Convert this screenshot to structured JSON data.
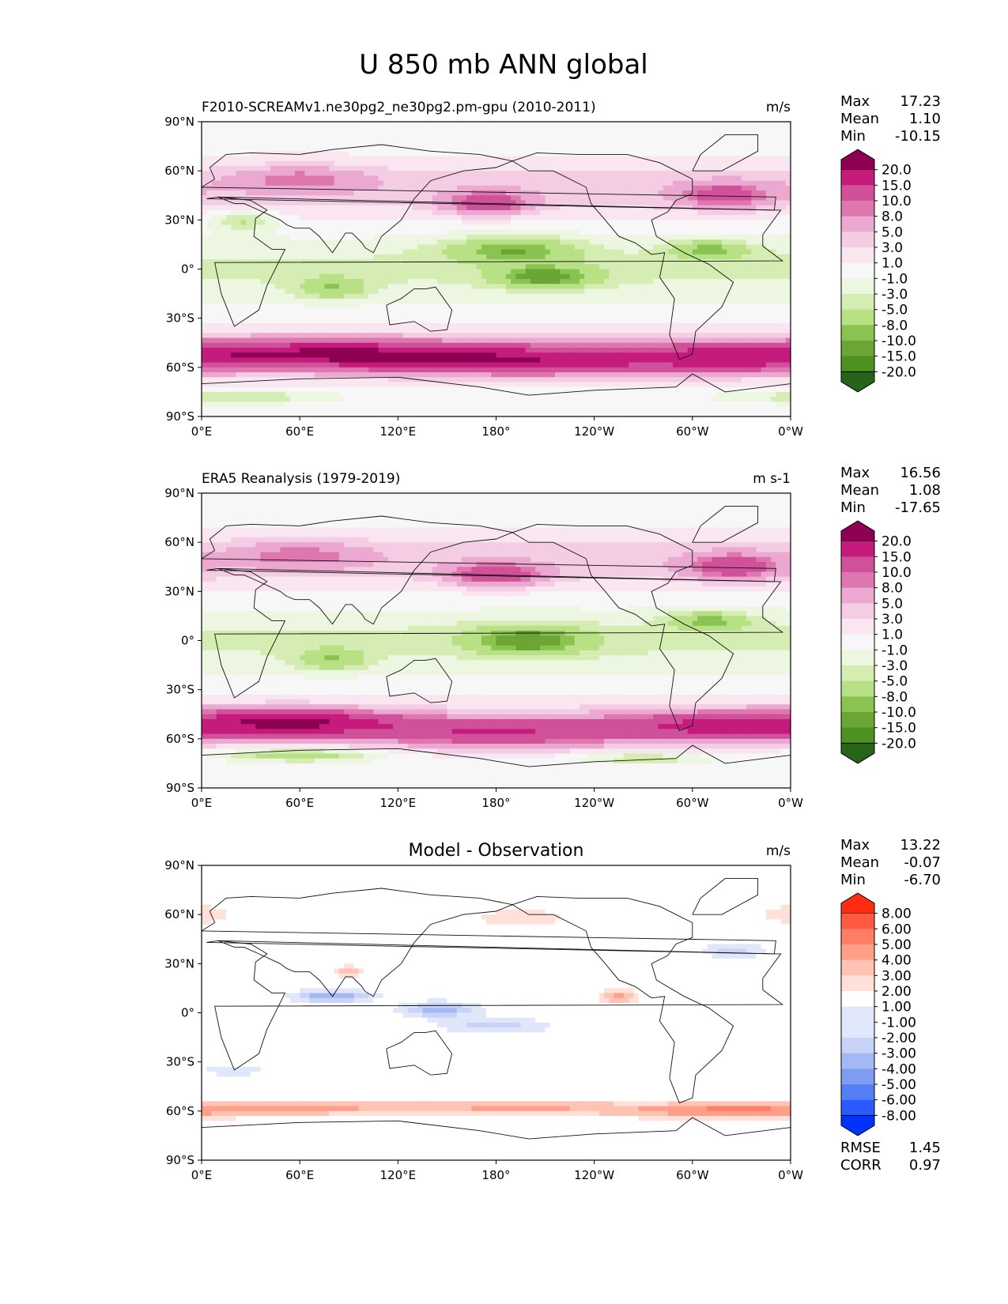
{
  "title": "U 850 mb ANN global",
  "lat_ticks": [
    "90°N",
    "60°N",
    "30°N",
    "0°",
    "30°S",
    "60°S",
    "90°S"
  ],
  "lon_ticks": [
    "0°E",
    "60°E",
    "120°E",
    "180°",
    "120°W",
    "60°W",
    "0°W"
  ],
  "stat_labels": {
    "max": "Max",
    "mean": "Mean",
    "min": "Min",
    "rmse": "RMSE",
    "corr": "CORR"
  },
  "field_colors": [
    "#276419",
    "#4d9221",
    "#6aa535",
    "#8ac351",
    "#b8e186",
    "#d5edb3",
    "#ecf6e0",
    "#f7f7f7",
    "#f9e6f1",
    "#f4cde4",
    "#eba9d1",
    "#de77ae",
    "#d0519a",
    "#c51b7d",
    "#8e0152"
  ],
  "diff_colors": [
    "#0033ff",
    "#2a5bff",
    "#5580f5",
    "#7e9df0",
    "#a4b8f3",
    "#c8d3f7",
    "#e1e7fb",
    "#ffffff",
    "#ffe1da",
    "#ffc3b4",
    "#ff9f8a",
    "#ff7e66",
    "#ff5a3f",
    "#ff2d12"
  ],
  "panels": [
    {
      "id": "model",
      "left_label": "F2010-SCREAMv1.ne30pg2_ne30pg2.pm-gpu (2010-2011)",
      "center_label": "",
      "units": "m/s",
      "stats": {
        "max": "17.23",
        "mean": "1.10",
        "min": "-10.15"
      },
      "colorbar": {
        "scheme": "field",
        "levels": [
          "20.0",
          "15.0",
          "10.0",
          "8.0",
          "5.0",
          "3.0",
          "1.0",
          "-1.0",
          "-3.0",
          "-5.0",
          "-8.0",
          "-10.0",
          "-15.0",
          "-20.0"
        ]
      },
      "field": {
        "type": "zonal_wind",
        "jets": [
          {
            "lon": 80,
            "lat": -52,
            "value": 17,
            "sx": 90,
            "sy": 9
          },
          {
            "lon": 200,
            "lat": -56,
            "value": 14,
            "sx": 80,
            "sy": 9
          },
          {
            "lon": 320,
            "lat": -54,
            "value": 12,
            "sx": 70,
            "sy": 9
          },
          {
            "lon": 175,
            "lat": 40,
            "value": 11,
            "sx": 25,
            "sy": 7
          },
          {
            "lon": 320,
            "lat": 45,
            "value": 9,
            "sx": 28,
            "sy": 8
          },
          {
            "lon": 60,
            "lat": 55,
            "value": 6,
            "sx": 40,
            "sy": 8
          },
          {
            "lon": 25,
            "lat": 30,
            "value": -6,
            "sx": 20,
            "sy": 6
          },
          {
            "lon": 190,
            "lat": 12,
            "value": -8,
            "sx": 40,
            "sy": 8
          },
          {
            "lon": 210,
            "lat": -5,
            "value": -9,
            "sx": 30,
            "sy": 7
          },
          {
            "lon": 310,
            "lat": 12,
            "value": -7,
            "sx": 25,
            "sy": 6
          },
          {
            "lon": 80,
            "lat": -12,
            "value": -6,
            "sx": 22,
            "sy": 7
          },
          {
            "lon": 20,
            "lat": -78,
            "value": -5,
            "sx": 60,
            "sy": 4
          }
        ]
      }
    },
    {
      "id": "obs",
      "left_label": "ERA5 Reanalysis (1979-2019)",
      "center_label": "",
      "units": "m s-1",
      "stats": {
        "max": "16.56",
        "mean": "1.08",
        "min": "-17.65"
      },
      "colorbar": {
        "scheme": "field",
        "levels": [
          "20.0",
          "15.0",
          "10.0",
          "8.0",
          "5.0",
          "3.0",
          "1.0",
          "-1.0",
          "-3.0",
          "-5.0",
          "-8.0",
          "-10.0",
          "-15.0",
          "-20.0"
        ]
      },
      "field": {
        "type": "zonal_wind",
        "jets": [
          {
            "lon": 60,
            "lat": -50,
            "value": 16,
            "sx": 60,
            "sy": 8
          },
          {
            "lon": 180,
            "lat": -56,
            "value": 12,
            "sx": 80,
            "sy": 9
          },
          {
            "lon": 320,
            "lat": -52,
            "value": 13,
            "sx": 70,
            "sy": 9
          },
          {
            "lon": 180,
            "lat": 40,
            "value": 11,
            "sx": 28,
            "sy": 7
          },
          {
            "lon": 325,
            "lat": 45,
            "value": 10,
            "sx": 28,
            "sy": 8
          },
          {
            "lon": 60,
            "lat": 52,
            "value": 6,
            "sx": 40,
            "sy": 8
          },
          {
            "lon": 200,
            "lat": 0,
            "value": -9,
            "sx": 35,
            "sy": 9
          },
          {
            "lon": 310,
            "lat": 12,
            "value": -7,
            "sx": 25,
            "sy": 6
          },
          {
            "lon": 80,
            "lat": -12,
            "value": -6,
            "sx": 22,
            "sy": 7
          },
          {
            "lon": 60,
            "lat": -70,
            "value": -8,
            "sx": 50,
            "sy": 4
          },
          {
            "lon": 270,
            "lat": -72,
            "value": -6,
            "sx": 40,
            "sy": 3
          }
        ]
      }
    },
    {
      "id": "diff",
      "left_label": "",
      "center_label": "Model - Observation",
      "units": "m/s",
      "stats": {
        "max": "13.22",
        "mean": "-0.07",
        "min": "-6.70",
        "rmse": "1.45",
        "corr": "0.97"
      },
      "colorbar": {
        "scheme": "diff",
        "levels": [
          "8.00",
          "6.00",
          "5.00",
          "4.00",
          "3.00",
          "2.00",
          "1.00",
          "-1.00",
          "-2.00",
          "-3.00",
          "-4.00",
          "-5.00",
          "-6.00",
          "-8.00"
        ]
      },
      "field": {
        "type": "difference",
        "jets": [
          {
            "lon": 60,
            "lat": -58,
            "value": 3,
            "sx": 80,
            "sy": 5
          },
          {
            "lon": 200,
            "lat": -58,
            "value": 3,
            "sx": 80,
            "sy": 5
          },
          {
            "lon": 320,
            "lat": -60,
            "value": 3.5,
            "sx": 60,
            "sy": 5
          },
          {
            "lon": 80,
            "lat": 10,
            "value": -4,
            "sx": 25,
            "sy": 4
          },
          {
            "lon": 145,
            "lat": 2,
            "value": -3.5,
            "sx": 25,
            "sy": 5
          },
          {
            "lon": 180,
            "lat": -8,
            "value": -2.5,
            "sx": 35,
            "sy": 5
          },
          {
            "lon": 255,
            "lat": 10,
            "value": 3.5,
            "sx": 12,
            "sy": 4
          },
          {
            "lon": 195,
            "lat": 58,
            "value": 2,
            "sx": 30,
            "sy": 5
          },
          {
            "lon": 325,
            "lat": 38,
            "value": -2.5,
            "sx": 20,
            "sy": 5
          },
          {
            "lon": 360,
            "lat": 60,
            "value": 2,
            "sx": 20,
            "sy": 6
          },
          {
            "lon": 20,
            "lat": -35,
            "value": -2,
            "sx": 20,
            "sy": 4
          },
          {
            "lon": 90,
            "lat": 25,
            "value": 2.5,
            "sx": 10,
            "sy": 4
          }
        ]
      }
    }
  ]
}
